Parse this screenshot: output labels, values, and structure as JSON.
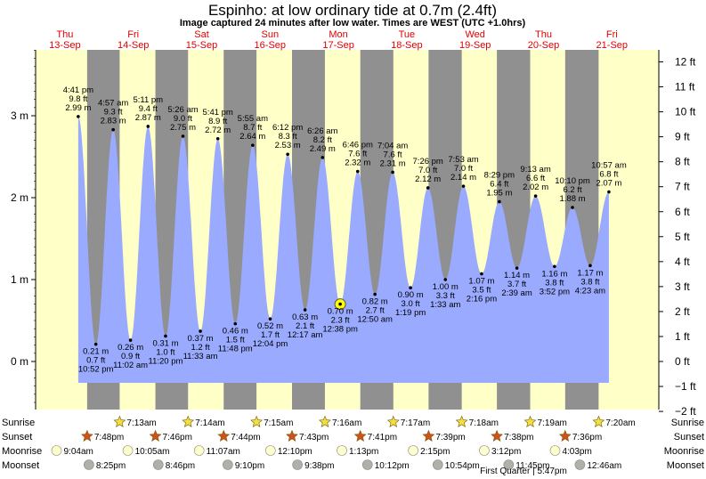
{
  "chart_data": {
    "type": "area",
    "title": "Espinho: at low  ordinary tide at 0.7m (2.4ft)",
    "subtitle": "Image captured 24 minutes after low water. Times are WEST (UTC +1.0hrs)",
    "days": [
      {
        "name": "Thu",
        "date": "13-Sep"
      },
      {
        "name": "Fri",
        "date": "14-Sep"
      },
      {
        "name": "Sat",
        "date": "15-Sep"
      },
      {
        "name": "Sun",
        "date": "16-Sep"
      },
      {
        "name": "Mon",
        "date": "17-Sep"
      },
      {
        "name": "Tue",
        "date": "18-Sep"
      },
      {
        "name": "Wed",
        "date": "19-Sep"
      },
      {
        "name": "Thu",
        "date": "20-Sep"
      },
      {
        "name": "Fri",
        "date": "21-Sep"
      }
    ],
    "left_axis": {
      "unit": "m",
      "ticks": [
        "0 m",
        "1 m",
        "2 m",
        "3 m"
      ],
      "values": [
        0,
        1,
        2,
        3
      ]
    },
    "right_axis": {
      "unit": "ft",
      "ticks": [
        "−2 ft",
        "−1 ft",
        "0 ft",
        "1 ft",
        "2 ft",
        "3 ft",
        "4 ft",
        "5 ft",
        "6 ft",
        "7 ft",
        "8 ft",
        "9 ft",
        "10 ft",
        "11 ft",
        "12 ft"
      ],
      "values": [
        -2,
        -1,
        0,
        1,
        2,
        3,
        4,
        5,
        6,
        7,
        8,
        9,
        10,
        11,
        12
      ]
    },
    "current": {
      "time": "12:38 pm",
      "height_m": 0.7,
      "day_index": 4
    },
    "tides": [
      {
        "type": "high",
        "day": 0,
        "time": "4:41 pm",
        "m": "2.99 m",
        "ft": "9.8 ft",
        "v": 2.99
      },
      {
        "type": "low",
        "day": 0,
        "time": "10:52 pm",
        "m": "0.21 m",
        "ft": "0.7 ft",
        "v": 0.21
      },
      {
        "type": "high",
        "day": 1,
        "time": "4:57 am",
        "m": "2.83 m",
        "ft": "9.3 ft",
        "v": 2.83
      },
      {
        "type": "low",
        "day": 1,
        "time": "11:02 am",
        "m": "0.26 m",
        "ft": "0.9 ft",
        "v": 0.26
      },
      {
        "type": "high",
        "day": 1,
        "time": "5:11 pm",
        "m": "2.87 m",
        "ft": "9.4 ft",
        "v": 2.87
      },
      {
        "type": "low",
        "day": 1,
        "time": "11:20 pm",
        "m": "0.31 m",
        "ft": "1.0 ft",
        "v": 0.31
      },
      {
        "type": "high",
        "day": 2,
        "time": "5:26 am",
        "m": "2.75 m",
        "ft": "9.0 ft",
        "v": 2.75
      },
      {
        "type": "low",
        "day": 2,
        "time": "11:33 am",
        "m": "0.37 m",
        "ft": "1.2 ft",
        "v": 0.37
      },
      {
        "type": "high",
        "day": 2,
        "time": "5:41 pm",
        "m": "2.72 m",
        "ft": "8.9 ft",
        "v": 2.72
      },
      {
        "type": "low",
        "day": 2,
        "time": "11:48 pm",
        "m": "0.46 m",
        "ft": "1.5 ft",
        "v": 0.46
      },
      {
        "type": "high",
        "day": 3,
        "time": "5:55 am",
        "m": "2.64 m",
        "ft": "8.7 ft",
        "v": 2.64
      },
      {
        "type": "low",
        "day": 3,
        "time": "12:04 pm",
        "m": "0.52 m",
        "ft": "1.7 ft",
        "v": 0.52
      },
      {
        "type": "high",
        "day": 3,
        "time": "6:12 pm",
        "m": "2.53 m",
        "ft": "8.3 ft",
        "v": 2.53
      },
      {
        "type": "low",
        "day": 4,
        "time": "12:17 am",
        "m": "0.63 m",
        "ft": "2.1 ft",
        "v": 0.63
      },
      {
        "type": "high",
        "day": 4,
        "time": "6:26 am",
        "m": "2.49 m",
        "ft": "8.2 ft",
        "v": 2.49
      },
      {
        "type": "low",
        "day": 4,
        "time": "12:38 pm",
        "m": "0.70 m",
        "ft": "2.3 ft",
        "v": 0.7
      },
      {
        "type": "high",
        "day": 4,
        "time": "6:46 pm",
        "m": "2.32 m",
        "ft": "7.6 ft",
        "v": 2.32
      },
      {
        "type": "low",
        "day": 5,
        "time": "12:50 am",
        "m": "0.82 m",
        "ft": "2.7 ft",
        "v": 0.82
      },
      {
        "type": "high",
        "day": 5,
        "time": "7:04 am",
        "m": "2.31 m",
        "ft": "7.6 ft",
        "v": 2.31
      },
      {
        "type": "low",
        "day": 5,
        "time": "1:19 pm",
        "m": "0.90 m",
        "ft": "3.0 ft",
        "v": 0.9
      },
      {
        "type": "high",
        "day": 5,
        "time": "7:26 pm",
        "m": "2.12 m",
        "ft": "7.0 ft",
        "v": 2.12
      },
      {
        "type": "low",
        "day": 6,
        "time": "1:33 am",
        "m": "1.00 m",
        "ft": "3.3 ft",
        "v": 1.0
      },
      {
        "type": "high",
        "day": 6,
        "time": "7:53 am",
        "m": "2.14 m",
        "ft": "7.0 ft",
        "v": 2.14
      },
      {
        "type": "low",
        "day": 6,
        "time": "2:16 pm",
        "m": "1.07 m",
        "ft": "3.5 ft",
        "v": 1.07
      },
      {
        "type": "high",
        "day": 6,
        "time": "8:29 pm",
        "m": "1.95 m",
        "ft": "6.4 ft",
        "v": 1.95
      },
      {
        "type": "low",
        "day": 7,
        "time": "2:39 am",
        "m": "1.14 m",
        "ft": "3.7 ft",
        "v": 1.14
      },
      {
        "type": "high",
        "day": 7,
        "time": "9:13 am",
        "m": "2.02 m",
        "ft": "6.6 ft",
        "v": 2.02
      },
      {
        "type": "low",
        "day": 7,
        "time": "3:52 pm",
        "m": "1.16 m",
        "ft": "3.8 ft",
        "v": 1.16
      },
      {
        "type": "high",
        "day": 7,
        "time": "10:10 pm",
        "m": "1.88 m",
        "ft": "6.2 ft",
        "v": 1.88
      },
      {
        "type": "low",
        "day": 8,
        "time": "4:23 am",
        "m": "1.17 m",
        "ft": "3.8 ft",
        "v": 1.17
      },
      {
        "type": "high",
        "day": 8,
        "time": "10:57 am",
        "m": "2.07 m",
        "ft": "6.8 ft",
        "v": 2.07
      }
    ],
    "rows": {
      "sunrise": {
        "label": "Sunrise",
        "color": "#f0e040",
        "times": [
          "7:13am",
          "7:14am",
          "7:15am",
          "7:16am",
          "7:17am",
          "7:18am",
          "7:19am",
          "7:20am"
        ]
      },
      "sunset": {
        "label": "Sunset",
        "color": "#d05020",
        "times": [
          "7:48pm",
          "7:46pm",
          "7:44pm",
          "7:43pm",
          "7:41pm",
          "7:39pm",
          "7:38pm",
          "7:36pm"
        ]
      },
      "moonrise": {
        "label": "Moonrise",
        "color": "#ffffcc",
        "times": [
          "9:04am",
          "10:05am",
          "11:07am",
          "12:10pm",
          "1:13pm",
          "2:15pm",
          "3:12pm",
          "4:03pm"
        ]
      },
      "moonset": {
        "label": "Moonset",
        "color": "#b0b0a8",
        "times": [
          "8:25pm",
          "8:46pm",
          "9:10pm",
          "9:38pm",
          "10:12pm",
          "10:54pm",
          "11:45pm",
          "12:46am"
        ]
      }
    },
    "moon_phase": "First Quarter | 5:47pm",
    "colors": {
      "day": "#ffffc8",
      "night": "#909090",
      "water": "#99aaff",
      "label_day": "#e00000"
    }
  }
}
